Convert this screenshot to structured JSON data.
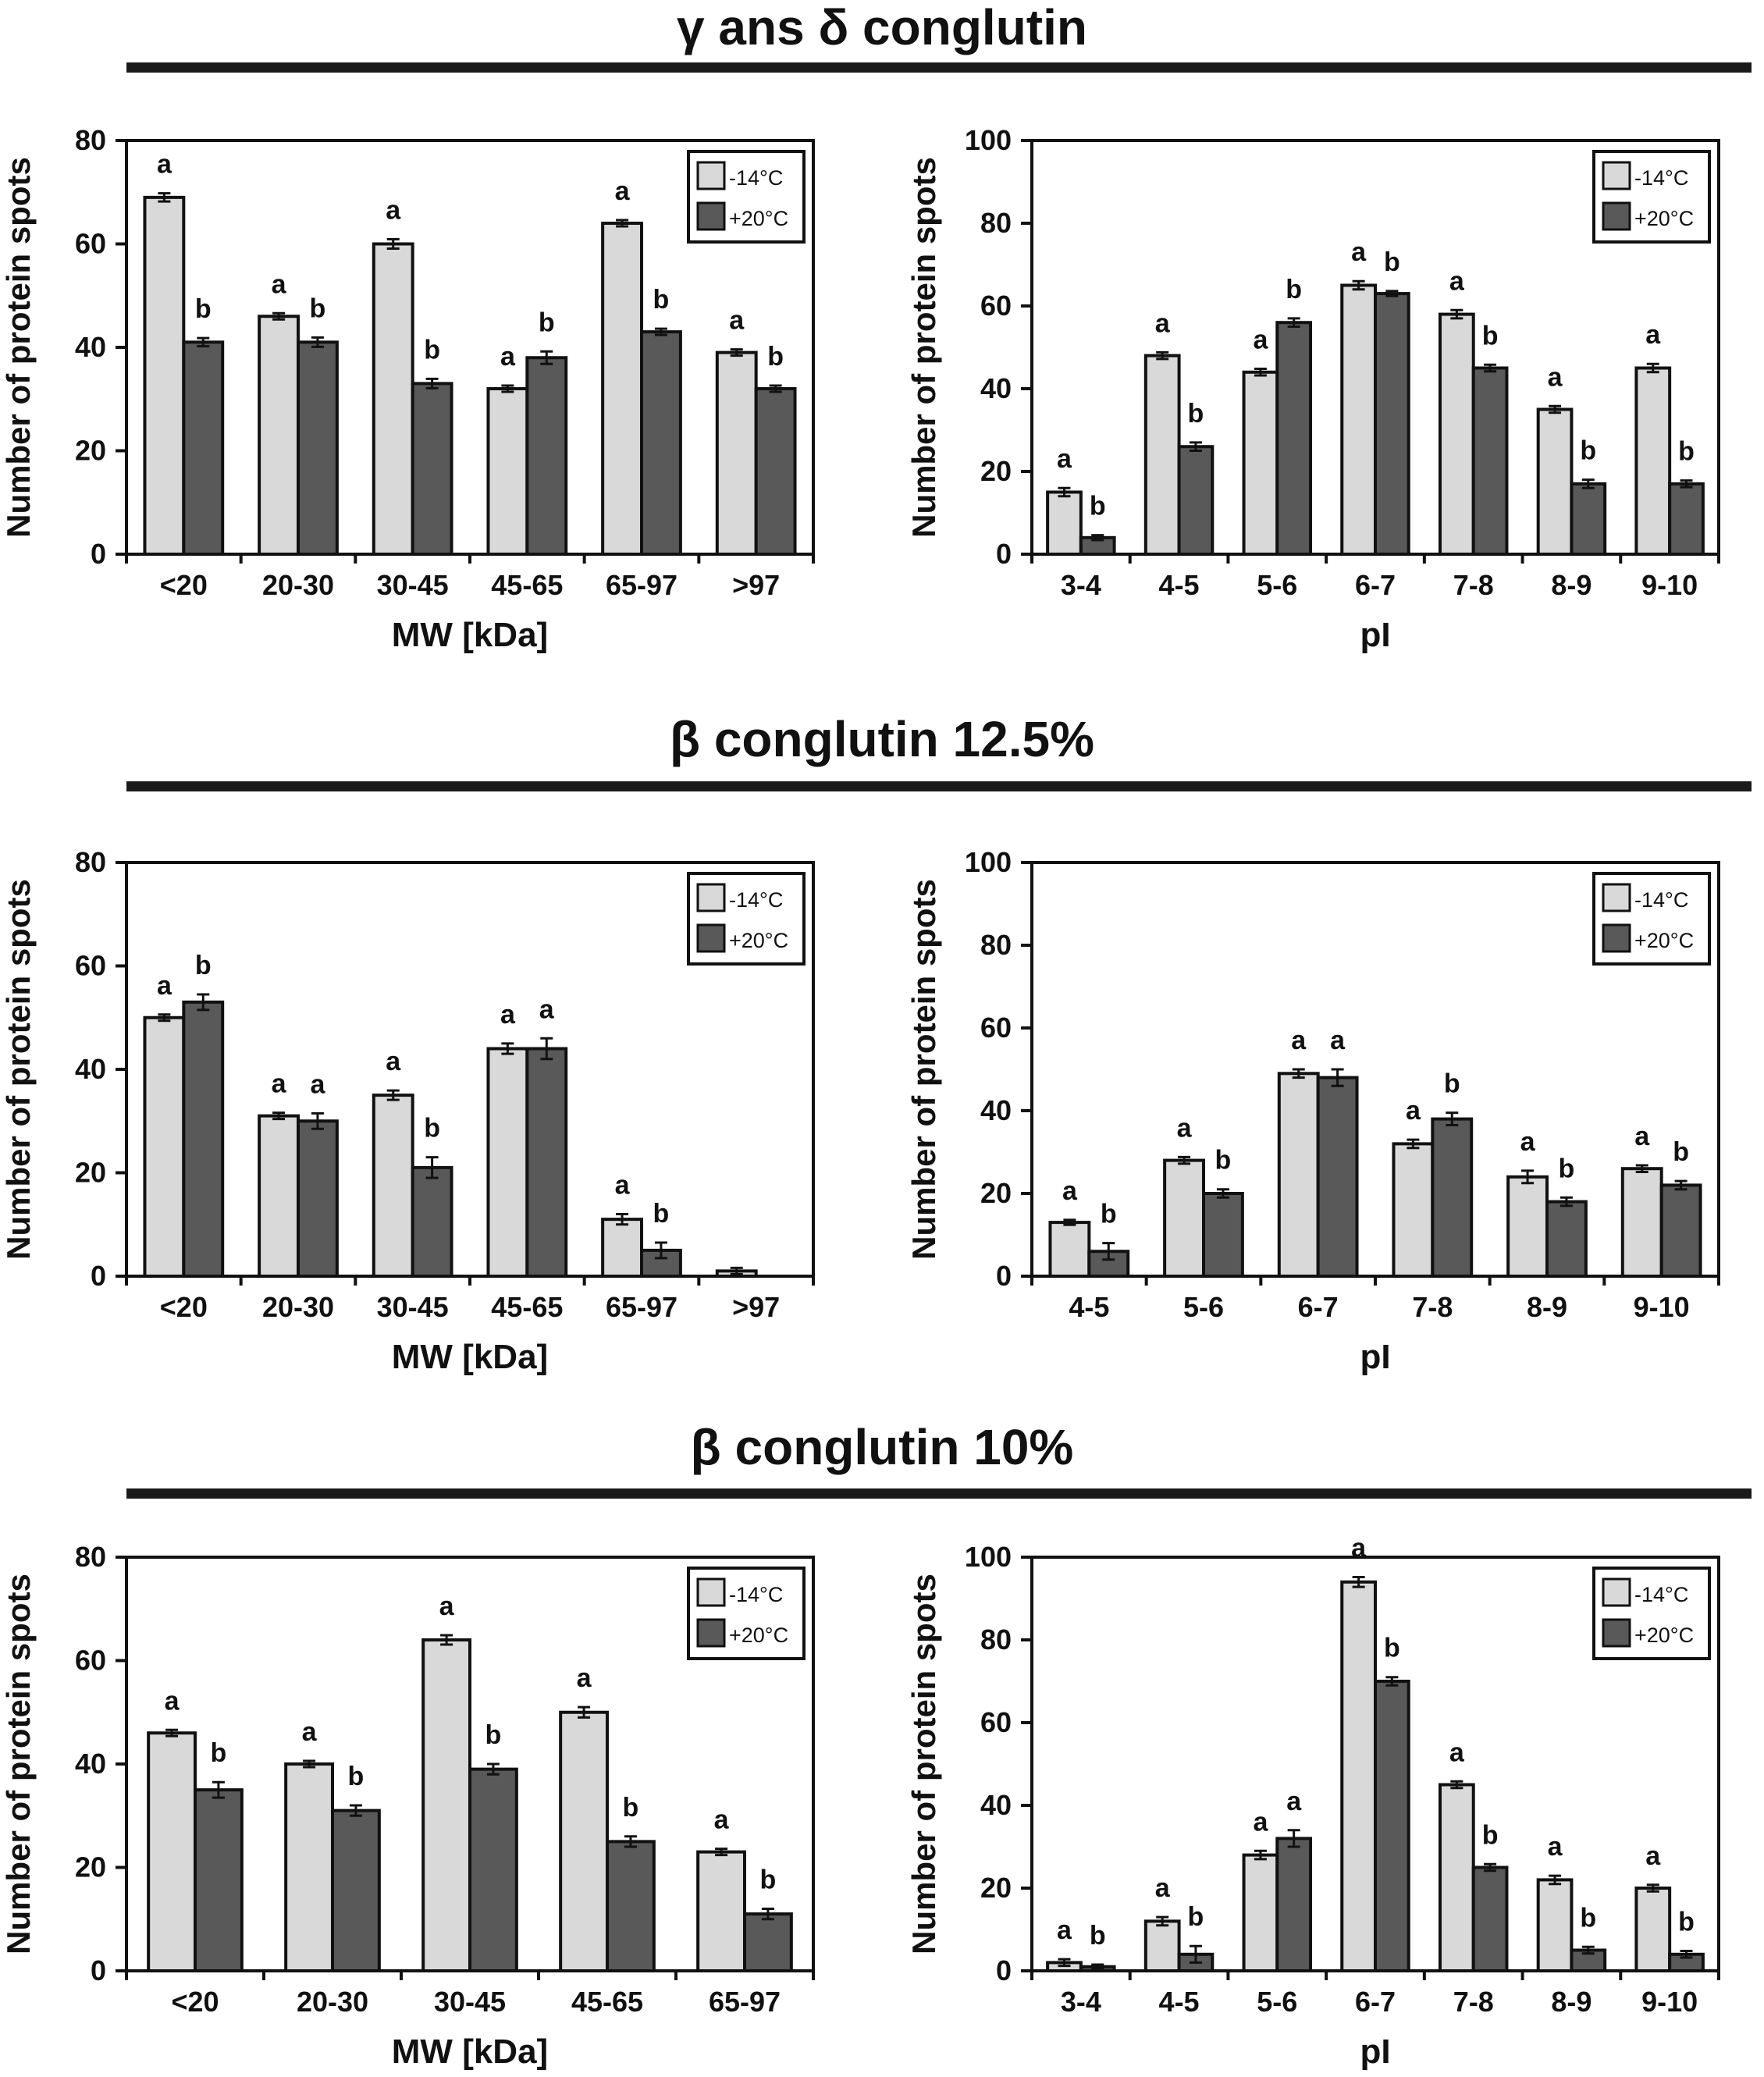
{
  "sections": [
    {
      "title": "γ ans δ conglutin"
    },
    {
      "title": "β conglutin 12.5%"
    },
    {
      "title": "β conglutin 10%"
    }
  ],
  "colors": {
    "minus14": "#d9d9d9",
    "plus20": "#595959",
    "axis": "#111111"
  },
  "chart_data": [
    {
      "type": "bar",
      "section": "γ ans δ conglutin",
      "xlabel": "MW [kDa]",
      "ylabel": "Number of protein spots",
      "ylim": [
        0,
        80
      ],
      "yticks": [
        0,
        20,
        40,
        60,
        80
      ],
      "legend": "top-right",
      "categories": [
        "<20",
        "20-30",
        "30-45",
        "45-65",
        "65-97",
        ">97"
      ],
      "series": [
        {
          "name": "-14°C",
          "values": [
            69,
            46,
            60,
            32,
            64,
            39
          ],
          "errors": [
            0.8,
            0.6,
            0.9,
            0.6,
            0.6,
            0.6
          ],
          "letters": [
            "a",
            "a",
            "a",
            "a",
            "a",
            "a"
          ]
        },
        {
          "name": "+20°C",
          "values": [
            41,
            41,
            33,
            38,
            43,
            32
          ],
          "errors": [
            0.8,
            0.9,
            0.9,
            1.2,
            0.6,
            0.6
          ],
          "letters": [
            "b",
            "b",
            "b",
            "b",
            "b",
            "b"
          ]
        }
      ]
    },
    {
      "type": "bar",
      "section": "γ ans δ conglutin",
      "xlabel": "pI",
      "ylabel": "Number of protein spots",
      "ylim": [
        0,
        100
      ],
      "yticks": [
        0,
        20,
        40,
        60,
        80,
        100
      ],
      "legend": "top-right",
      "categories": [
        "3-4",
        "4-5",
        "5-6",
        "6-7",
        "7-8",
        "8-9",
        "9-10"
      ],
      "series": [
        {
          "name": "-14°C",
          "values": [
            15,
            48,
            44,
            65,
            58,
            35,
            45
          ],
          "errors": [
            1.0,
            0.8,
            0.8,
            1.0,
            1.0,
            0.8,
            1.0
          ],
          "letters": [
            "a",
            "a",
            "a",
            "a",
            "a",
            "a",
            "a"
          ]
        },
        {
          "name": "+20°C",
          "values": [
            4,
            26,
            56,
            63,
            45,
            17,
            17
          ],
          "errors": [
            0.6,
            1.0,
            1.0,
            0.6,
            0.8,
            1.0,
            0.8
          ],
          "letters": [
            "b",
            "b",
            "b",
            "b",
            "b",
            "b",
            "b"
          ]
        }
      ]
    },
    {
      "type": "bar",
      "section": "β conglutin 12.5%",
      "xlabel": "MW [kDa]",
      "ylabel": "Number of protein spots",
      "ylim": [
        0,
        80
      ],
      "yticks": [
        0,
        20,
        40,
        60,
        80
      ],
      "legend": "top-right",
      "categories": [
        "<20",
        "20-30",
        "30-45",
        "45-65",
        "65-97",
        ">97"
      ],
      "series": [
        {
          "name": "-14°C",
          "values": [
            50,
            31,
            35,
            44,
            11,
            1
          ],
          "errors": [
            0.6,
            0.6,
            0.9,
            1.0,
            1.0,
            0.6
          ],
          "letters": [
            "a",
            "a",
            "a",
            "a",
            "a",
            ""
          ]
        },
        {
          "name": "+20°C",
          "values": [
            53,
            30,
            21,
            44,
            5,
            0
          ],
          "errors": [
            1.5,
            1.5,
            2.0,
            2.0,
            1.5,
            0
          ],
          "letters": [
            "b",
            "a",
            "b",
            "a",
            "b",
            ""
          ]
        }
      ]
    },
    {
      "type": "bar",
      "section": "β conglutin 12.5%",
      "xlabel": "pI",
      "ylabel": "Number of protein spots",
      "ylim": [
        0,
        100
      ],
      "yticks": [
        0,
        20,
        40,
        60,
        80,
        100
      ],
      "legend": "top-right",
      "categories": [
        "4-5",
        "5-6",
        "6-7",
        "7-8",
        "8-9",
        "9-10"
      ],
      "series": [
        {
          "name": "-14°C",
          "values": [
            13,
            28,
            49,
            32,
            24,
            26
          ],
          "errors": [
            0.6,
            0.8,
            1.0,
            1.0,
            1.5,
            0.8
          ],
          "letters": [
            "a",
            "a",
            "a",
            "a",
            "a",
            "a"
          ]
        },
        {
          "name": "+20°C",
          "values": [
            6,
            20,
            48,
            38,
            18,
            22
          ],
          "errors": [
            2.0,
            1.0,
            2.0,
            1.5,
            1.0,
            1.0
          ],
          "letters": [
            "b",
            "b",
            "a",
            "b",
            "b",
            "b"
          ]
        }
      ]
    },
    {
      "type": "bar",
      "section": "β conglutin 10%",
      "xlabel": "MW [kDa]",
      "ylabel": "Number of protein spots",
      "ylim": [
        0,
        80
      ],
      "yticks": [
        0,
        20,
        40,
        60,
        80
      ],
      "legend": "top-right",
      "categories": [
        "<20",
        "20-30",
        "30-45",
        "45-65",
        "65-97"
      ],
      "series": [
        {
          "name": "-14°C",
          "values": [
            46,
            40,
            64,
            50,
            23
          ],
          "errors": [
            0.6,
            0.6,
            0.9,
            1.0,
            0.6
          ],
          "letters": [
            "a",
            "a",
            "a",
            "a",
            "a"
          ]
        },
        {
          "name": "+20°C",
          "values": [
            35,
            31,
            39,
            25,
            11
          ],
          "errors": [
            1.5,
            1.0,
            1.0,
            1.0,
            1.0
          ],
          "letters": [
            "b",
            "b",
            "b",
            "b",
            "b"
          ]
        }
      ]
    },
    {
      "type": "bar",
      "section": "β conglutin 10%",
      "xlabel": "pI",
      "ylabel": "Number of protein spots",
      "ylim": [
        0,
        100
      ],
      "yticks": [
        0,
        20,
        40,
        60,
        80,
        100
      ],
      "legend": "top-right",
      "categories": [
        "3-4",
        "4-5",
        "5-6",
        "6-7",
        "7-8",
        "8-9",
        "9-10"
      ],
      "series": [
        {
          "name": "-14°C",
          "values": [
            2,
            12,
            28,
            94,
            45,
            22,
            20
          ],
          "errors": [
            0.8,
            1.0,
            1.0,
            1.2,
            0.8,
            1.0,
            0.8
          ],
          "letters": [
            "a",
            "a",
            "a",
            "a",
            "a",
            "a",
            "a"
          ]
        },
        {
          "name": "+20°C",
          "values": [
            1,
            4,
            32,
            70,
            25,
            5,
            4
          ],
          "errors": [
            0.5,
            2.0,
            2.0,
            1.0,
            0.8,
            0.8,
            0.8
          ],
          "letters": [
            "b",
            "b",
            "a",
            "b",
            "b",
            "b",
            "b"
          ]
        }
      ]
    }
  ]
}
